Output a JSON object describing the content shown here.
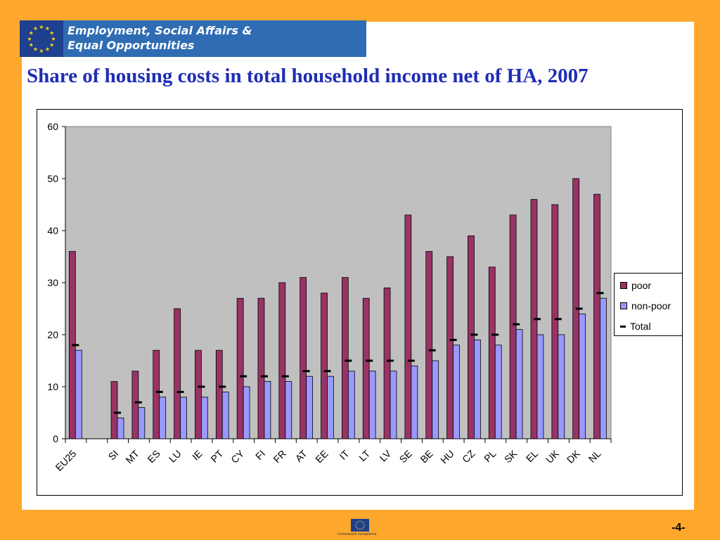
{
  "banner": {
    "line1": "Employment, Social Affairs &",
    "line2": "Equal Opportunities"
  },
  "title": "Share of housing costs in total household income net of HA, 2007",
  "footer": {
    "caption": "Commission européenne",
    "page": "-4-"
  },
  "colors": {
    "poor": "#993366",
    "nonpoor": "#9999FF",
    "plot_bg": "#C0C0C0",
    "title": "#1F2DB4",
    "background": "#FFA82E"
  },
  "chart_data": {
    "type": "bar",
    "title": "",
    "xlabel": "",
    "ylabel": "",
    "ylim": [
      0,
      60
    ],
    "yticks": [
      0,
      10,
      20,
      30,
      40,
      50,
      60
    ],
    "grid": false,
    "legend_position": "right",
    "categories": [
      "EU25",
      "",
      "SI",
      "MT",
      "ES",
      "LU",
      "IE",
      "PT",
      "CY",
      "FI",
      "FR",
      "AT",
      "EE",
      "IT",
      "LT",
      "LV",
      "SE",
      "BE",
      "HU",
      "CZ",
      "PL",
      "SK",
      "EL",
      "UK",
      "DK",
      "NL"
    ],
    "series": [
      {
        "name": "poor",
        "type": "bar",
        "values": [
          36,
          null,
          11,
          13,
          17,
          25,
          17,
          17,
          27,
          27,
          30,
          31,
          28,
          31,
          27,
          29,
          43,
          36,
          35,
          39,
          33,
          43,
          46,
          45,
          50,
          47
        ]
      },
      {
        "name": "non-poor",
        "type": "bar",
        "values": [
          17,
          null,
          4,
          6,
          8,
          8,
          8,
          9,
          10,
          11,
          11,
          12,
          12,
          13,
          13,
          13,
          14,
          15,
          18,
          19,
          18,
          21,
          20,
          20,
          24,
          27
        ]
      },
      {
        "name": "Total",
        "type": "marker",
        "values": [
          18,
          null,
          5,
          7,
          9,
          9,
          10,
          10,
          12,
          12,
          12,
          13,
          13,
          15,
          15,
          15,
          15,
          17,
          19,
          20,
          20,
          22,
          23,
          23,
          25,
          28
        ]
      }
    ]
  }
}
